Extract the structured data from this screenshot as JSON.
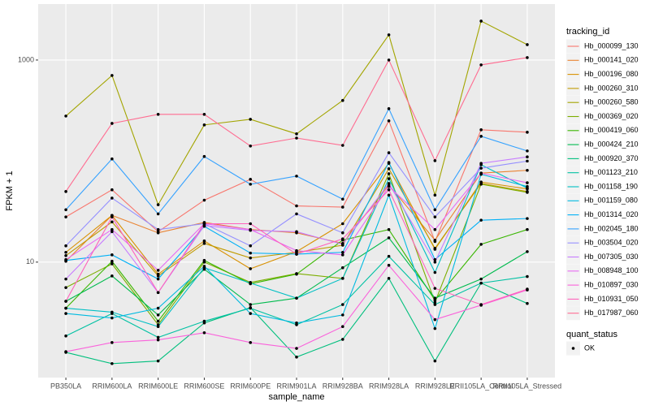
{
  "chart_data": {
    "type": "line",
    "x_label": "sample_name",
    "y_label": "FPKM + 1",
    "categories": [
      "PB350LA",
      "RRIM600LA",
      "RRIM600LE",
      "RRIM600SE",
      "RRIM600PE",
      "RRIM901LA",
      "RRIM928BA",
      "RRIM928LA",
      "RRIM928LE",
      "RRII105LA_Control",
      "RRII105LA_Stressed"
    ],
    "log_scale": true,
    "grid": true,
    "ylim": [
      0.72,
      3580
    ],
    "yticks": [
      10,
      1000
    ],
    "point_color": "#000000",
    "legend": {
      "title": "tracking_id",
      "position": "right"
    },
    "shape_legend": {
      "title": "quant_status",
      "labels": [
        "OK"
      ]
    },
    "series": [
      {
        "name": "Hb_000099_130",
        "color": "#F8766D",
        "values": [
          28,
          52,
          20,
          41,
          66,
          36,
          35,
          250,
          16,
          204,
          193
        ]
      },
      {
        "name": "Hb_000141_020",
        "color": "#EA8331",
        "values": [
          10.2,
          29,
          19.5,
          24.7,
          21,
          19.5,
          15.3,
          58,
          16.5,
          76,
          81
        ]
      },
      {
        "name": "Hb_000196_080",
        "color": "#D89000",
        "values": [
          12.5,
          29,
          7.6,
          16.2,
          8.6,
          12.7,
          24,
          95,
          13.4,
          62,
          53
        ]
      },
      {
        "name": "Hb_000260_310",
        "color": "#C09B00",
        "values": [
          11.6,
          25,
          7.3,
          15.3,
          11,
          12.5,
          14.7,
          84,
          13.7,
          60,
          50
        ]
      },
      {
        "name": "Hb_000260_580",
        "color": "#A3A500",
        "values": [
          279,
          704,
          37,
          228,
          259,
          186,
          398,
          1775,
          46,
          2430,
          1420
        ]
      },
      {
        "name": "Hb_000369_020",
        "color": "#7CAE00",
        "values": [
          5.6,
          9.6,
          2.4,
          10,
          6.3,
          7.7,
          6.9,
          75,
          4.0,
          59,
          49
        ]
      },
      {
        "name": "Hb_000419_060",
        "color": "#39B600",
        "values": [
          3.5,
          10.2,
          2.6,
          10.4,
          6.1,
          7.6,
          16.5,
          21,
          4.2,
          15,
          21
        ]
      },
      {
        "name": "Hb_000424_210",
        "color": "#00BB4E",
        "values": [
          4.1,
          7.3,
          3.0,
          8.5,
          3.8,
          4.4,
          8.8,
          17.4,
          4.4,
          6.8,
          12.7
        ]
      },
      {
        "name": "Hb_000920_370",
        "color": "#00BF7D",
        "values": [
          1.28,
          0.99,
          1.05,
          2.5,
          3.55,
          1.15,
          1.72,
          6.9,
          1.05,
          6.2,
          3.9
        ]
      },
      {
        "name": "Hb_001123_210",
        "color": "#00C1A3",
        "values": [
          1.86,
          3.1,
          1.8,
          2.6,
          3.5,
          2.4,
          3.8,
          11.4,
          3.8,
          6.2,
          7.2
        ]
      },
      {
        "name": "Hb_001158_190",
        "color": "#00BFC4",
        "values": [
          3.5,
          3.2,
          2.3,
          8.8,
          6.2,
          4.4,
          6.9,
          67,
          7.9,
          92,
          54
        ]
      },
      {
        "name": "Hb_001159_080",
        "color": "#00BAE0",
        "values": [
          3.1,
          2.8,
          3.5,
          9.1,
          3.1,
          2.5,
          3.0,
          46,
          2.2,
          74,
          56
        ]
      },
      {
        "name": "Hb_001314_020",
        "color": "#00B0F6",
        "values": [
          10.4,
          11.8,
          6.8,
          22.6,
          12.3,
          12.0,
          12.5,
          97,
          10.6,
          26,
          27
        ]
      },
      {
        "name": "Hb_002045_180",
        "color": "#35A2FF",
        "values": [
          33,
          105,
          30,
          111,
          59,
          71,
          42,
          330,
          33,
          176,
          126
        ]
      },
      {
        "name": "Hb_003504_020",
        "color": "#9590FF",
        "values": [
          14.5,
          43,
          21,
          24,
          14.5,
          30,
          19.5,
          121,
          28,
          85,
          100
        ]
      },
      {
        "name": "Hb_007305_030",
        "color": "#C77CFF",
        "values": [
          6.8,
          20,
          5.0,
          23,
          20.6,
          20,
          15,
          60,
          10,
          95,
          110
        ]
      },
      {
        "name": "Hb_008948_100",
        "color": "#E76BF3",
        "values": [
          10.6,
          21,
          8.3,
          24,
          21,
          13,
          11.8,
          56,
          21,
          76,
          61
        ]
      },
      {
        "name": "Hb_010897_030",
        "color": "#FA62DB",
        "values": [
          1.3,
          1.6,
          1.7,
          2.0,
          1.6,
          1.4,
          2.3,
          9.3,
          2.7,
          3.75,
          5.3
        ]
      },
      {
        "name": "Hb_010931_050",
        "color": "#FF62BC",
        "values": [
          4.1,
          28,
          5.0,
          24,
          24,
          12,
          17,
          52,
          5.5,
          3.8,
          5.4
        ]
      },
      {
        "name": "Hb_017987_060",
        "color": "#FF6C91",
        "values": [
          50,
          236,
          290,
          290,
          141,
          169,
          143,
          1000,
          101,
          895,
          1057
        ]
      }
    ]
  }
}
